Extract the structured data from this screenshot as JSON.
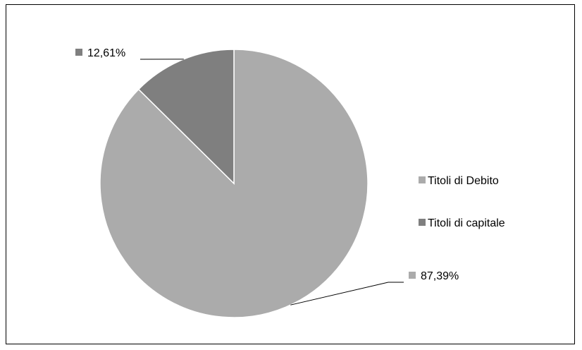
{
  "chart_data": {
    "type": "pie",
    "title": "",
    "start_angle_deg": 0,
    "direction": "counterclockwise",
    "slices": [
      {
        "label": "Titoli di Debito",
        "value": 87.39,
        "value_label": "87,39%",
        "color": "#ababab"
      },
      {
        "label": "Titoli di capitale",
        "value": 12.61,
        "value_label": "12,61%",
        "color": "#7f7f7f"
      }
    ],
    "legend": {
      "placement": "right",
      "items": [
        {
          "label": "Titoli di Debito",
          "color": "#ababab"
        },
        {
          "label": "Titoli di capitale",
          "color": "#7f7f7f"
        }
      ]
    }
  }
}
